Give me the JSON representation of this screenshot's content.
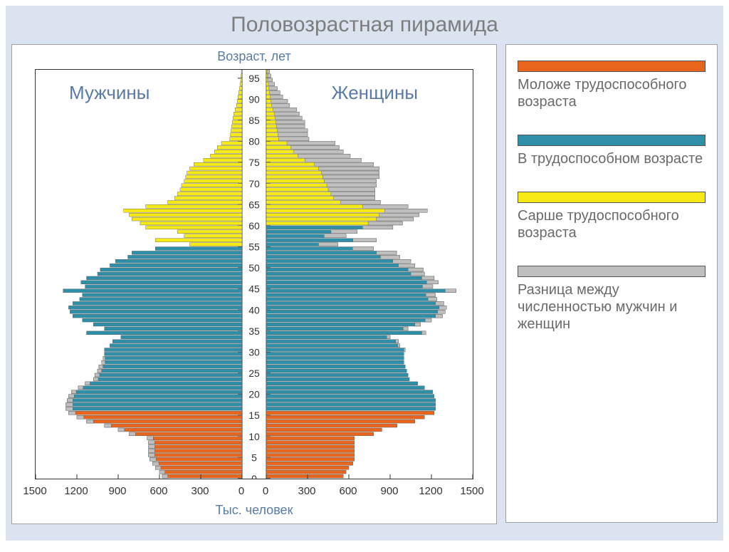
{
  "title": "Половозрастная пирамида",
  "chart": {
    "type": "population-pyramid",
    "axis_top_label": "Возраст, лет",
    "axis_bottom_label": "Тыс. человек",
    "male_label": "Мужчины",
    "female_label": "Женщины",
    "label_color": "#5a7aa8",
    "title_fontsize": 30,
    "label_fontsize": 26,
    "axis_fontsize": 18,
    "tick_fontsize": 15,
    "background": "#ffffff",
    "page_background": "#dbe3f0",
    "border_color": "#333333",
    "x_ticks": [
      1500,
      1200,
      900,
      600,
      300,
      0,
      0,
      300,
      600,
      900,
      1200,
      1500
    ],
    "x_max": 1500,
    "center_gap": 34,
    "y_ticks_step": 5,
    "y_range": [
      0,
      97
    ],
    "y_tick_labels": [
      0,
      5,
      10,
      15,
      20,
      25,
      30,
      35,
      40,
      45,
      50,
      55,
      60,
      65,
      70,
      75,
      80,
      85,
      90,
      95
    ],
    "colors": {
      "young": "#e8651e",
      "working": "#2f8ea8",
      "older": "#f7e916",
      "diff": "#bfbfbf",
      "tick_mark": "#333333"
    },
    "bars": [
      {
        "age": 0,
        "m": 580,
        "f": 560,
        "cat": "young",
        "dm": 40,
        "df": 0
      },
      {
        "age": 1,
        "m": 600,
        "f": 580,
        "cat": "young",
        "dm": 40,
        "df": 0
      },
      {
        "age": 2,
        "m": 630,
        "f": 600,
        "cat": "young",
        "dm": 40,
        "df": 0
      },
      {
        "age": 3,
        "m": 650,
        "f": 630,
        "cat": "young",
        "dm": 45,
        "df": 0
      },
      {
        "age": 4,
        "m": 670,
        "f": 640,
        "cat": "young",
        "dm": 45,
        "df": 0
      },
      {
        "age": 5,
        "m": 680,
        "f": 640,
        "cat": "young",
        "dm": 45,
        "df": 0
      },
      {
        "age": 6,
        "m": 680,
        "f": 640,
        "cat": "young",
        "dm": 45,
        "df": 0
      },
      {
        "age": 7,
        "m": 680,
        "f": 640,
        "cat": "young",
        "dm": 45,
        "df": 0
      },
      {
        "age": 8,
        "m": 680,
        "f": 640,
        "cat": "young",
        "dm": 45,
        "df": 0
      },
      {
        "age": 9,
        "m": 690,
        "f": 640,
        "cat": "young",
        "dm": 45,
        "df": 0
      },
      {
        "age": 10,
        "m": 820,
        "f": 780,
        "cat": "young",
        "dm": 45,
        "df": 0
      },
      {
        "age": 11,
        "m": 900,
        "f": 840,
        "cat": "young",
        "dm": 45,
        "df": 0
      },
      {
        "age": 12,
        "m": 1000,
        "f": 950,
        "cat": "young",
        "dm": 50,
        "df": 0
      },
      {
        "age": 13,
        "m": 1130,
        "f": 1080,
        "cat": "young",
        "dm": 50,
        "df": 0
      },
      {
        "age": 14,
        "m": 1200,
        "f": 1150,
        "cat": "young",
        "dm": 50,
        "df": 0
      },
      {
        "age": 15,
        "m": 1260,
        "f": 1220,
        "cat": "young",
        "dm": 50,
        "df": 0
      },
      {
        "age": 16,
        "m": 1280,
        "f": 1230,
        "cat": "working",
        "dm": 50,
        "df": 0
      },
      {
        "age": 17,
        "m": 1280,
        "f": 1230,
        "cat": "working",
        "dm": 50,
        "df": 0
      },
      {
        "age": 18,
        "m": 1270,
        "f": 1230,
        "cat": "working",
        "dm": 40,
        "df": 0
      },
      {
        "age": 19,
        "m": 1260,
        "f": 1220,
        "cat": "working",
        "dm": 40,
        "df": 0
      },
      {
        "age": 20,
        "m": 1240,
        "f": 1210,
        "cat": "working",
        "dm": 35,
        "df": 0
      },
      {
        "age": 21,
        "m": 1190,
        "f": 1150,
        "cat": "working",
        "dm": 35,
        "df": 0
      },
      {
        "age": 22,
        "m": 1140,
        "f": 1100,
        "cat": "working",
        "dm": 35,
        "df": 0
      },
      {
        "age": 23,
        "m": 1080,
        "f": 1040,
        "cat": "working",
        "dm": 35,
        "df": 0
      },
      {
        "age": 24,
        "m": 1070,
        "f": 1030,
        "cat": "working",
        "dm": 35,
        "df": 0
      },
      {
        "age": 25,
        "m": 1050,
        "f": 1020,
        "cat": "working",
        "dm": 30,
        "df": 0
      },
      {
        "age": 26,
        "m": 1040,
        "f": 1010,
        "cat": "working",
        "dm": 30,
        "df": 0
      },
      {
        "age": 27,
        "m": 1020,
        "f": 1000,
        "cat": "working",
        "dm": 25,
        "df": 0
      },
      {
        "age": 28,
        "m": 1010,
        "f": 1000,
        "cat": "working",
        "dm": 15,
        "df": 0
      },
      {
        "age": 29,
        "m": 1000,
        "f": 1000,
        "cat": "working",
        "dm": 0,
        "df": 0
      },
      {
        "age": 30,
        "m": 1000,
        "f": 1010,
        "cat": "working",
        "dm": 0,
        "df": 10
      },
      {
        "age": 31,
        "m": 960,
        "f": 970,
        "cat": "working",
        "dm": 0,
        "df": 15
      },
      {
        "age": 32,
        "m": 940,
        "f": 960,
        "cat": "working",
        "dm": 0,
        "df": 20
      },
      {
        "age": 33,
        "m": 880,
        "f": 900,
        "cat": "working",
        "dm": 0,
        "df": 25
      },
      {
        "age": 34,
        "m": 1130,
        "f": 1160,
        "cat": "working",
        "dm": 0,
        "df": 30
      },
      {
        "age": 35,
        "m": 1000,
        "f": 1030,
        "cat": "working",
        "dm": 0,
        "df": 35
      },
      {
        "age": 36,
        "m": 1080,
        "f": 1120,
        "cat": "working",
        "dm": 0,
        "df": 40
      },
      {
        "age": 37,
        "m": 1160,
        "f": 1200,
        "cat": "working",
        "dm": 0,
        "df": 45
      },
      {
        "age": 38,
        "m": 1230,
        "f": 1280,
        "cat": "working",
        "dm": 0,
        "df": 50
      },
      {
        "age": 39,
        "m": 1250,
        "f": 1300,
        "cat": "working",
        "dm": 0,
        "df": 55
      },
      {
        "age": 40,
        "m": 1260,
        "f": 1310,
        "cat": "working",
        "dm": 0,
        "df": 55
      },
      {
        "age": 41,
        "m": 1230,
        "f": 1290,
        "cat": "working",
        "dm": 0,
        "df": 60
      },
      {
        "age": 42,
        "m": 1180,
        "f": 1240,
        "cat": "working",
        "dm": 0,
        "df": 65
      },
      {
        "age": 43,
        "m": 1160,
        "f": 1230,
        "cat": "working",
        "dm": 0,
        "df": 70
      },
      {
        "age": 44,
        "m": 1300,
        "f": 1380,
        "cat": "working",
        "dm": 0,
        "df": 80
      },
      {
        "age": 45,
        "m": 1140,
        "f": 1210,
        "cat": "working",
        "dm": 0,
        "df": 75
      },
      {
        "age": 46,
        "m": 1170,
        "f": 1250,
        "cat": "working",
        "dm": 0,
        "df": 85
      },
      {
        "age": 47,
        "m": 1130,
        "f": 1220,
        "cat": "working",
        "dm": 0,
        "df": 90
      },
      {
        "age": 48,
        "m": 1050,
        "f": 1150,
        "cat": "working",
        "dm": 0,
        "df": 100
      },
      {
        "age": 49,
        "m": 1030,
        "f": 1140,
        "cat": "working",
        "dm": 0,
        "df": 110
      },
      {
        "age": 50,
        "m": 960,
        "f": 1080,
        "cat": "working",
        "dm": 0,
        "df": 120
      },
      {
        "age": 51,
        "m": 920,
        "f": 1050,
        "cat": "working",
        "dm": 0,
        "df": 130
      },
      {
        "age": 52,
        "m": 830,
        "f": 970,
        "cat": "working",
        "dm": 0,
        "df": 140
      },
      {
        "age": 53,
        "m": 800,
        "f": 947,
        "cat": "working",
        "dm": 0,
        "df": 147
      },
      {
        "age": 54,
        "m": 630,
        "f": 780,
        "cat": "working",
        "dm": 0,
        "df": 153
      },
      {
        "age": 55,
        "m": 380,
        "f": 520,
        "cat": "workingF_olderM",
        "dm": 0,
        "df": 140
      },
      {
        "age": 56,
        "m": 630,
        "f": 800,
        "cat": "workingF_olderM",
        "dm": 0,
        "df": 170
      },
      {
        "age": 57,
        "m": 420,
        "f": 580,
        "cat": "workingF_olderM",
        "dm": 0,
        "df": 160
      },
      {
        "age": 58,
        "m": 470,
        "f": 660,
        "cat": "workingF_olderM",
        "dm": 0,
        "df": 190
      },
      {
        "age": 59,
        "m": 700,
        "f": 920,
        "cat": "workingF_olderM",
        "dm": 0,
        "df": 220
      },
      {
        "age": 60,
        "m": 740,
        "f": 990,
        "cat": "older",
        "dm": 0,
        "df": 250
      },
      {
        "age": 61,
        "m": 800,
        "f": 1070,
        "cat": "older",
        "dm": 0,
        "df": 270
      },
      {
        "age": 62,
        "m": 820,
        "f": 1110,
        "cat": "older",
        "dm": 0,
        "df": 290
      },
      {
        "age": 63,
        "m": 860,
        "f": 1170,
        "cat": "older",
        "dm": 0,
        "df": 310
      },
      {
        "age": 64,
        "m": 700,
        "f": 1030,
        "cat": "older",
        "dm": 0,
        "df": 330
      },
      {
        "age": 65,
        "m": 540,
        "f": 830,
        "cat": "older",
        "dm": 0,
        "df": 290
      },
      {
        "age": 66,
        "m": 490,
        "f": 790,
        "cat": "older",
        "dm": 0,
        "df": 300
      },
      {
        "age": 67,
        "m": 470,
        "f": 790,
        "cat": "older",
        "dm": 0,
        "df": 320
      },
      {
        "age": 68,
        "m": 450,
        "f": 790,
        "cat": "older",
        "dm": 0,
        "df": 340
      },
      {
        "age": 69,
        "m": 440,
        "f": 800,
        "cat": "older",
        "dm": 0,
        "df": 360
      },
      {
        "age": 70,
        "m": 420,
        "f": 800,
        "cat": "older",
        "dm": 0,
        "df": 380
      },
      {
        "age": 71,
        "m": 410,
        "f": 820,
        "cat": "older",
        "dm": 0,
        "df": 410
      },
      {
        "age": 72,
        "m": 400,
        "f": 820,
        "cat": "older",
        "dm": 0,
        "df": 420
      },
      {
        "age": 73,
        "m": 380,
        "f": 820,
        "cat": "older",
        "dm": 0,
        "df": 440
      },
      {
        "age": 74,
        "m": 350,
        "f": 780,
        "cat": "older",
        "dm": 0,
        "df": 430
      },
      {
        "age": 75,
        "m": 280,
        "f": 690,
        "cat": "older",
        "dm": 0,
        "df": 410
      },
      {
        "age": 76,
        "m": 230,
        "f": 610,
        "cat": "older",
        "dm": 0,
        "df": 380
      },
      {
        "age": 77,
        "m": 200,
        "f": 560,
        "cat": "older",
        "dm": 0,
        "df": 360
      },
      {
        "age": 78,
        "m": 180,
        "f": 530,
        "cat": "older",
        "dm": 0,
        "df": 350
      },
      {
        "age": 79,
        "m": 150,
        "f": 500,
        "cat": "older",
        "dm": 0,
        "df": 350
      },
      {
        "age": 80,
        "m": 90,
        "f": 310,
        "cat": "older",
        "dm": 0,
        "df": 220
      },
      {
        "age": 81,
        "m": 85,
        "f": 300,
        "cat": "older",
        "dm": 0,
        "df": 215
      },
      {
        "age": 82,
        "m": 80,
        "f": 300,
        "cat": "older",
        "dm": 0,
        "df": 220
      },
      {
        "age": 83,
        "m": 75,
        "f": 280,
        "cat": "older",
        "dm": 0,
        "df": 205
      },
      {
        "age": 84,
        "m": 70,
        "f": 280,
        "cat": "older",
        "dm": 0,
        "df": 210
      },
      {
        "age": 85,
        "m": 65,
        "f": 260,
        "cat": "older",
        "dm": 0,
        "df": 195
      },
      {
        "age": 86,
        "m": 60,
        "f": 240,
        "cat": "older",
        "dm": 0,
        "df": 180
      },
      {
        "age": 87,
        "m": 50,
        "f": 220,
        "cat": "older",
        "dm": 0,
        "df": 170
      },
      {
        "age": 88,
        "m": 40,
        "f": 170,
        "cat": "older",
        "dm": 0,
        "df": 130
      },
      {
        "age": 89,
        "m": 35,
        "f": 155,
        "cat": "older",
        "dm": 0,
        "df": 120
      },
      {
        "age": 90,
        "m": 30,
        "f": 120,
        "cat": "older",
        "dm": 0,
        "df": 90
      },
      {
        "age": 91,
        "m": 25,
        "f": 100,
        "cat": "older",
        "dm": 0,
        "df": 75
      },
      {
        "age": 92,
        "m": 20,
        "f": 80,
        "cat": "older",
        "dm": 0,
        "df": 60
      },
      {
        "age": 93,
        "m": 15,
        "f": 60,
        "cat": "older",
        "dm": 0,
        "df": 45
      },
      {
        "age": 94,
        "m": 10,
        "f": 45,
        "cat": "older",
        "dm": 0,
        "df": 35
      },
      {
        "age": 95,
        "m": 8,
        "f": 33,
        "cat": "older",
        "dm": 0,
        "df": 25
      },
      {
        "age": 96,
        "m": 5,
        "f": 23,
        "cat": "older",
        "dm": 0,
        "df": 18
      }
    ]
  },
  "legend": {
    "items": [
      {
        "color": "#e8651e",
        "label": "Моложе трудоспособного возраста"
      },
      {
        "color": "#2f8ea8",
        "label": "В трудоспособном возрасте"
      },
      {
        "color": "#f7e916",
        "label": "Сарше трудоспособного возраста"
      },
      {
        "color": "#bfbfbf",
        "label": "Разница между численностью мужчин и женщин"
      }
    ],
    "label_color": "#6a6a6a",
    "label_fontsize": 20
  }
}
